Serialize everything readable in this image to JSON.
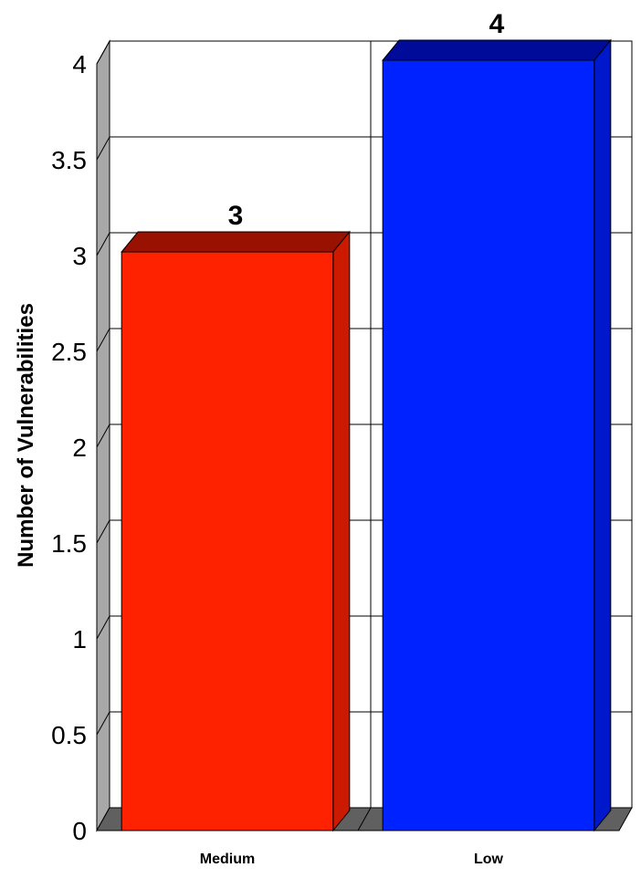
{
  "chart_data": {
    "type": "bar",
    "title": "",
    "xlabel": "",
    "ylabel": "Number of Vulnerabilities",
    "categories": [
      "Medium",
      "Low"
    ],
    "values": [
      3,
      4
    ],
    "data_labels": [
      "3",
      "4"
    ],
    "y_ticks": [
      "0",
      "0.5",
      "1",
      "1.5",
      "2",
      "2.5",
      "3",
      "3.5",
      "4"
    ],
    "ylim": [
      0,
      4
    ],
    "grid": true,
    "style": "3d",
    "colors": {
      "Medium": {
        "front": "#ff2200",
        "top": "#991100",
        "side": "#cc1a00"
      },
      "Low": {
        "front": "#0022ff",
        "top": "#000c99",
        "side": "#0018cc"
      },
      "wall_side": "#a8a8a8",
      "floor": "#606060",
      "gridline": "#000000"
    }
  }
}
